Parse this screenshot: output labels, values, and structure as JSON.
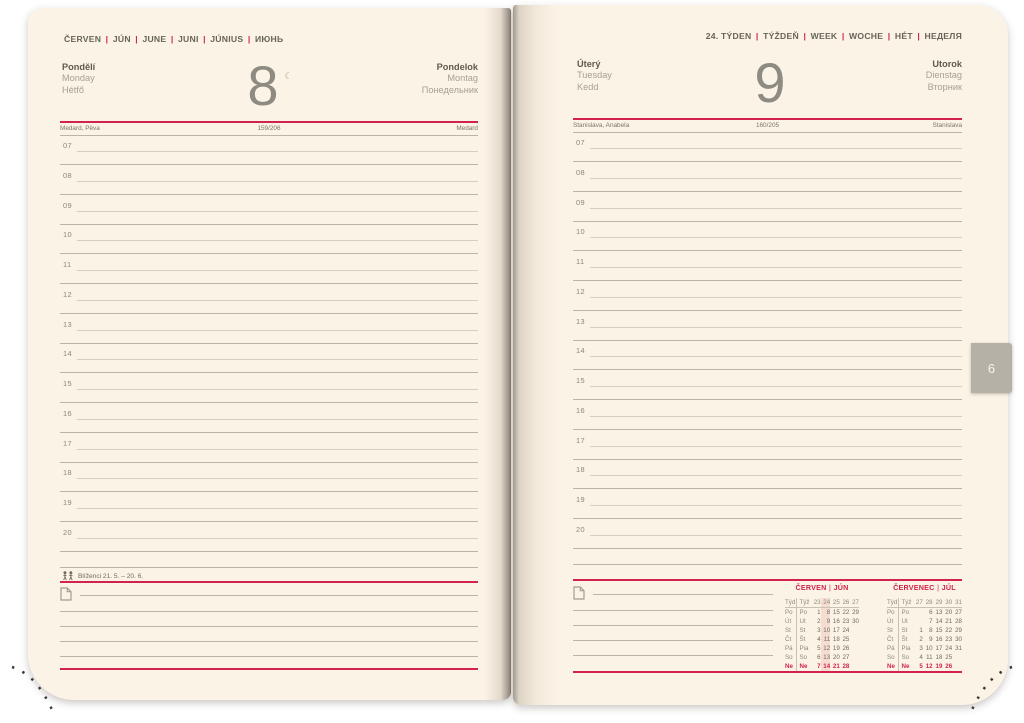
{
  "colors": {
    "accent": "#d2234c",
    "page_background": "#fbf3e5",
    "tab_background": "#b6b1a7",
    "week_highlight": "#f6dcd0"
  },
  "tab": {
    "label": "6"
  },
  "hours": [
    "07",
    "08",
    "09",
    "10",
    "11",
    "12",
    "13",
    "14",
    "15",
    "16",
    "17",
    "18",
    "19",
    "20"
  ],
  "pages": {
    "left": {
      "month_header_parts": [
        "ČERVEN",
        "JÚN",
        "JUNE",
        "JUNI",
        "JÚNIUS",
        "ИЮНЬ"
      ],
      "day": {
        "name_top": "Pondělí",
        "name_top_2": "Monday",
        "name_top_3": "Hétfő",
        "number": "8",
        "moon_symbol": "☾",
        "name_alt": "Pondelok",
        "name_alt_2": "Montag",
        "name_alt_3": "Понедельник"
      },
      "nameday": {
        "left": "Medard, Pěva",
        "center": "159/206",
        "right": "Medard"
      },
      "zodiac_label": "Blíženci 21. 5. – 20. 6."
    },
    "right": {
      "week_header_parts": [
        "24. TÝDEN",
        "TÝŽDEŇ",
        "WEEK",
        "WOCHE",
        "HÉT",
        "НЕДЕЛЯ"
      ],
      "day": {
        "name_top": "Úterý",
        "name_top_2": "Tuesday",
        "name_top_3": "Kedd",
        "number": "9",
        "name_alt": "Utorok",
        "name_alt_2": "Dienstag",
        "name_alt_3": "Вторник"
      },
      "nameday": {
        "left": "Stanislava, Anabela",
        "center": "160/205",
        "right": "Stanislava"
      }
    }
  },
  "calendars": [
    {
      "title_parts": [
        "ČERVEN",
        "JÚN"
      ],
      "highlight_col": 1,
      "rows": [
        {
          "labels": [
            "Týd",
            "Týž"
          ],
          "cells": [
            "23",
            "24",
            "25",
            "26",
            "27"
          ],
          "type": "week"
        },
        {
          "labels": [
            "Po",
            "Po"
          ],
          "cells": [
            "1",
            "8",
            "15",
            "22",
            "29"
          ]
        },
        {
          "labels": [
            "Út",
            "Ut"
          ],
          "cells": [
            "2",
            "9",
            "16",
            "23",
            "30"
          ]
        },
        {
          "labels": [
            "St",
            "St"
          ],
          "cells": [
            "3",
            "10",
            "17",
            "24",
            ""
          ]
        },
        {
          "labels": [
            "Čt",
            "Št"
          ],
          "cells": [
            "4",
            "11",
            "18",
            "25",
            ""
          ]
        },
        {
          "labels": [
            "Pá",
            "Pia"
          ],
          "cells": [
            "5",
            "12",
            "19",
            "26",
            ""
          ]
        },
        {
          "labels": [
            "So",
            "So"
          ],
          "cells": [
            "6",
            "13",
            "20",
            "27",
            ""
          ]
        },
        {
          "labels": [
            "Ne",
            "Ne"
          ],
          "cells": [
            "7",
            "14",
            "21",
            "28",
            ""
          ],
          "type": "sunday"
        }
      ]
    },
    {
      "title_parts": [
        "ČERVENEC",
        "JÚL"
      ],
      "highlight_col": null,
      "rows": [
        {
          "labels": [
            "Týd",
            "Týž"
          ],
          "cells": [
            "27",
            "28",
            "29",
            "30",
            "31"
          ],
          "type": "week"
        },
        {
          "labels": [
            "Po",
            "Po"
          ],
          "cells": [
            "",
            "6",
            "13",
            "20",
            "27"
          ]
        },
        {
          "labels": [
            "Út",
            "Ut"
          ],
          "cells": [
            "",
            "7",
            "14",
            "21",
            "28"
          ]
        },
        {
          "labels": [
            "St",
            "St"
          ],
          "cells": [
            "1",
            "8",
            "15",
            "22",
            "29"
          ]
        },
        {
          "labels": [
            "Čt",
            "Št"
          ],
          "cells": [
            "2",
            "9",
            "16",
            "23",
            "30"
          ]
        },
        {
          "labels": [
            "Pá",
            "Pia"
          ],
          "cells": [
            "3",
            "10",
            "17",
            "24",
            "31"
          ]
        },
        {
          "labels": [
            "So",
            "So"
          ],
          "cells": [
            "4",
            "11",
            "18",
            "25",
            ""
          ]
        },
        {
          "labels": [
            "Ne",
            "Ne"
          ],
          "cells": [
            "5",
            "12",
            "19",
            "26",
            ""
          ],
          "type": "sunday"
        }
      ]
    }
  ]
}
